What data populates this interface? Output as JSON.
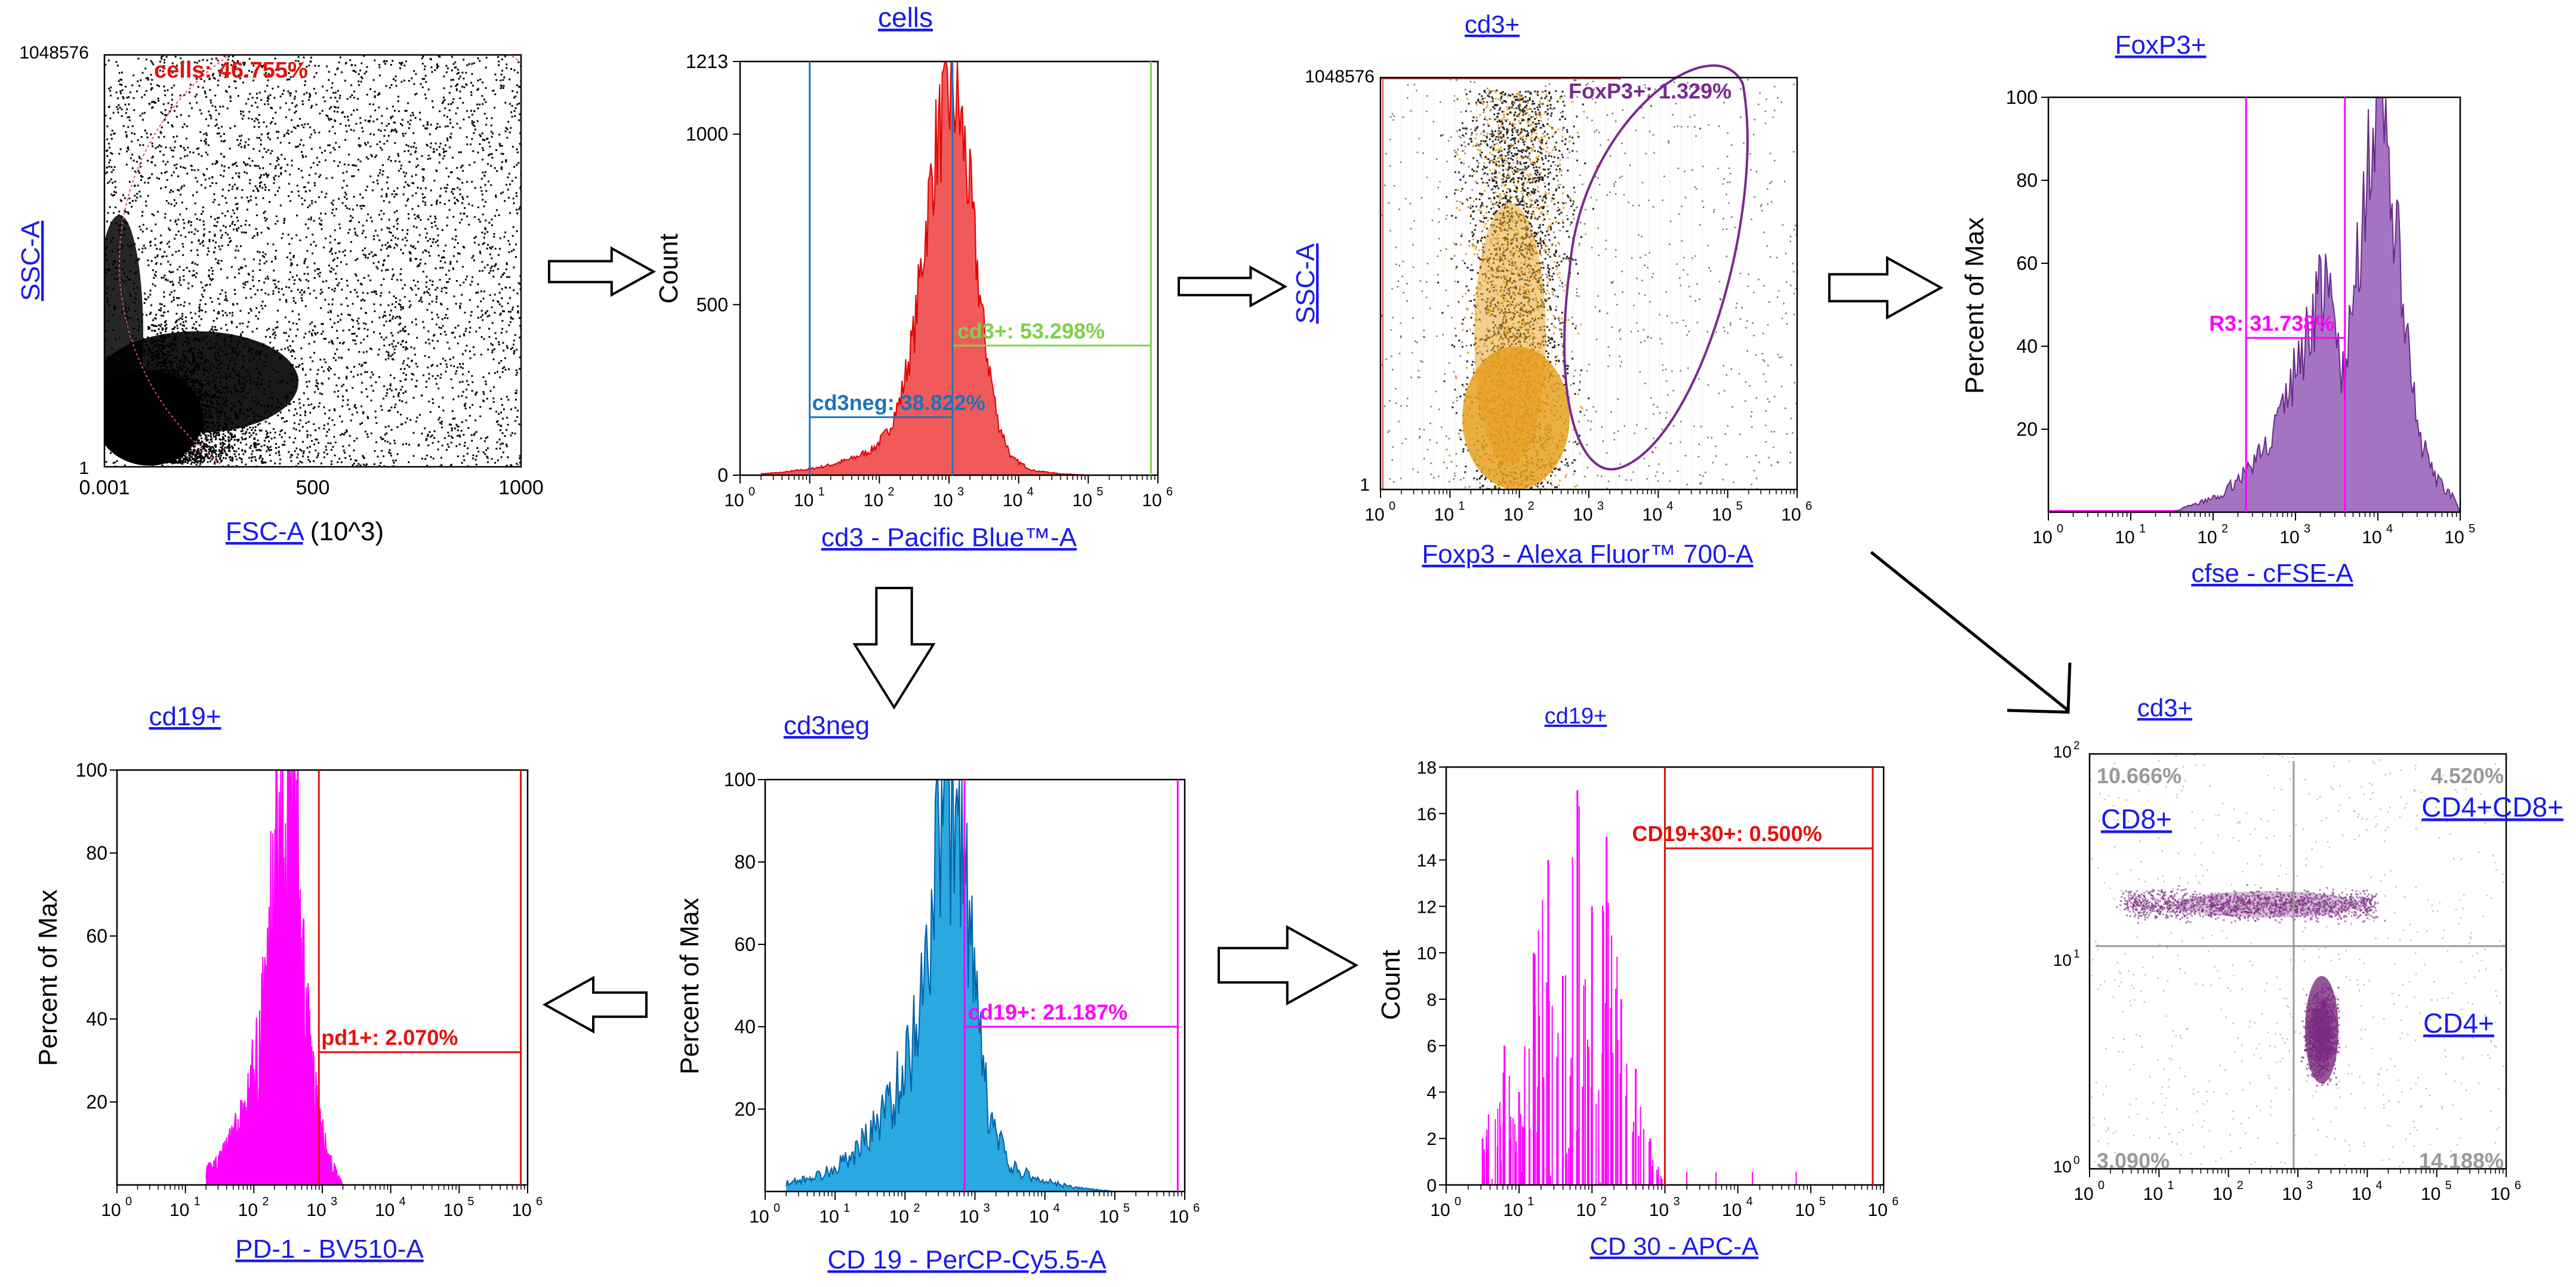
{
  "colors": {
    "link": "#1a1aee",
    "gate_red": "#e3120b",
    "gate_green": "#7ed14a",
    "gate_blue": "#1d73b8",
    "gate_purple": "#7b2a8e",
    "gate_magenta": "#ff00ff",
    "cd3_fill": "#f05a5a",
    "cd3_outline": "#e00000",
    "foxp3_dots": "#e8a020",
    "cfse_fill": "#a474c2",
    "cd19_fill": "#2aa8e0",
    "magenta": "#ff00ff",
    "quad_dots": "#7a2a80",
    "quad_line": "#999999",
    "quad_text": "#999999",
    "axis": "#000000"
  },
  "chart_data": [
    {
      "id": "p1",
      "type": "scatter",
      "title": "",
      "xlabel": "FSC-A",
      "xlabel_suffix": " (10^3)",
      "ylabel": "SSC-A",
      "x_ticks": [
        "0.001",
        "500",
        "1000"
      ],
      "y_ticks": [
        "1048576",
        "1"
      ],
      "gates": [
        {
          "name": "cells",
          "label": "cells: 46.755%",
          "percent": 46.755,
          "shape": "ellipse"
        }
      ]
    },
    {
      "id": "p2",
      "type": "area",
      "title": "cells",
      "xlabel": "cd3 - Pacific Blue™-A",
      "ylabel": "Count",
      "ylim": [
        0,
        1213
      ],
      "y_ticks": [
        "1213",
        "1000",
        "500",
        "0"
      ],
      "x_ticks": [
        "10",
        "10",
        "10",
        "10",
        "10",
        "10",
        "10"
      ],
      "x_tick_exps": [
        "0",
        "1",
        "2",
        "3",
        "4",
        "5",
        "6"
      ],
      "x": [
        0.3,
        0.6,
        1.0,
        1.3,
        1.6,
        1.9,
        2.1,
        2.3,
        2.5,
        2.65,
        2.8,
        2.95,
        3.05,
        3.15,
        3.25,
        3.35,
        3.5,
        3.7,
        3.9,
        4.2,
        4.6,
        5.0
      ],
      "values": [
        4,
        8,
        18,
        30,
        48,
        75,
        120,
        220,
        420,
        700,
        950,
        1080,
        1130,
        1060,
        920,
        720,
        420,
        160,
        50,
        14,
        4,
        0
      ],
      "gates": [
        {
          "name": "cd3+",
          "label": "cd3+: 53.298%",
          "percent": 53.298,
          "range": [
            3.05,
            5.9
          ],
          "level": 380
        },
        {
          "name": "cd3neg",
          "label": "cd3neg: 38.822%",
          "percent": 38.822,
          "range": [
            1.0,
            3.05
          ],
          "level": 170
        }
      ]
    },
    {
      "id": "p3",
      "type": "scatter",
      "title": "cd3+",
      "xlabel": "Foxp3 - Alexa Fluor™ 700-A",
      "ylabel": "SSC-A",
      "y_ticks": [
        "1048576",
        "1"
      ],
      "x_ticks": [
        "10",
        "10",
        "10",
        "10",
        "10",
        "10",
        "10"
      ],
      "x_tick_exps": [
        "0",
        "1",
        "2",
        "3",
        "4",
        "5",
        "6"
      ],
      "gates": [
        {
          "name": "FoxP3+",
          "label": "FoxP3+: 1.329%",
          "percent": 1.329,
          "shape": "ellipse"
        }
      ]
    },
    {
      "id": "p4",
      "type": "area",
      "title": "FoxP3+",
      "xlabel": "cfse - cFSE-A",
      "ylabel": "Percent of Max",
      "ylim": [
        0,
        100
      ],
      "y_ticks": [
        "100",
        "80",
        "60",
        "40",
        "20"
      ],
      "x_ticks": [
        "10",
        "10",
        "10",
        "10",
        "10",
        "10"
      ],
      "x_tick_exps": [
        "0",
        "1",
        "2",
        "3",
        "4",
        "5"
      ],
      "x": [
        0,
        1.5,
        1.8,
        2.1,
        2.3,
        2.5,
        2.7,
        2.9,
        3.1,
        3.3,
        3.45,
        3.6,
        3.75,
        3.9,
        4.05,
        4.2,
        4.35,
        4.5,
        4.7,
        4.9,
        5.0
      ],
      "values": [
        0,
        0,
        2,
        4,
        8,
        12,
        18,
        28,
        40,
        55,
        48,
        30,
        62,
        90,
        100,
        72,
        40,
        18,
        8,
        4,
        0
      ],
      "gates": [
        {
          "name": "R3",
          "label": "R3: 31.738%",
          "percent": 31.738,
          "range": [
            2.4,
            3.6
          ],
          "level": 42
        }
      ]
    },
    {
      "id": "p5",
      "type": "area",
      "title": "cd19+",
      "xlabel": "PD-1 - BV510-A",
      "ylabel": "Percent of Max",
      "ylim": [
        0,
        100
      ],
      "y_ticks": [
        "100",
        "80",
        "60",
        "40",
        "20"
      ],
      "x_ticks": [
        "10",
        "10",
        "10",
        "10",
        "10",
        "10",
        "10"
      ],
      "x_tick_exps": [
        "0",
        "1",
        "2",
        "3",
        "4",
        "5",
        "6"
      ],
      "x": [
        1.3,
        1.6,
        1.9,
        2.1,
        2.25,
        2.4,
        2.5,
        2.6,
        2.7,
        2.8,
        2.95,
        3.1,
        3.3
      ],
      "values": [
        3,
        8,
        18,
        35,
        60,
        88,
        100,
        85,
        55,
        32,
        14,
        6,
        0
      ],
      "gates": [
        {
          "name": "pd1+",
          "label": "pd1+: 2.070%",
          "percent": 2.07,
          "range": [
            2.95,
            5.9
          ],
          "level": 32
        }
      ]
    },
    {
      "id": "p6",
      "type": "area",
      "title": "cd3neg",
      "xlabel": "CD 19 - PerCP-Cy5.5-A",
      "ylabel": "Percent of Max",
      "ylim": [
        0,
        100
      ],
      "y_ticks": [
        "100",
        "80",
        "60",
        "40",
        "20"
      ],
      "x_ticks": [
        "10",
        "10",
        "10",
        "10",
        "10",
        "10",
        "10"
      ],
      "x_tick_exps": [
        "0",
        "1",
        "2",
        "3",
        "4",
        "5",
        "6"
      ],
      "x": [
        0.3,
        0.8,
        1.2,
        1.5,
        1.8,
        2.0,
        2.2,
        2.4,
        2.55,
        2.7,
        2.85,
        3.0,
        3.2,
        3.5,
        3.9,
        4.4,
        5.0
      ],
      "values": [
        2,
        4,
        8,
        14,
        22,
        30,
        45,
        70,
        95,
        100,
        80,
        45,
        18,
        6,
        3,
        1,
        0
      ],
      "gates": [
        {
          "name": "cd19+",
          "label": "cd19+: 21.187%",
          "percent": 21.187,
          "range": [
            2.85,
            5.9
          ],
          "level": 40
        }
      ]
    },
    {
      "id": "p7",
      "type": "area",
      "title": "cd19+",
      "xlabel": "CD 30 - APC-A",
      "ylabel": "Count",
      "ylim": [
        0,
        18
      ],
      "y_ticks": [
        "18",
        "16",
        "14",
        "12",
        "10",
        "8",
        "6",
        "4",
        "2",
        "0"
      ],
      "x_ticks": [
        "10",
        "10",
        "10",
        "10",
        "10",
        "10",
        "10"
      ],
      "x_tick_exps": [
        "0",
        "1",
        "2",
        "3",
        "4",
        "5",
        "6"
      ],
      "x": [
        0.5,
        0.8,
        1.0,
        1.2,
        1.4,
        1.6,
        1.8,
        2.0,
        2.2,
        2.4,
        2.6,
        2.8,
        3.0
      ],
      "values": [
        2,
        6,
        4,
        10,
        14,
        9,
        17,
        12,
        15,
        8,
        5,
        2,
        0
      ],
      "gates": [
        {
          "name": "CD19+30+",
          "label": "CD19+30+: 0.500%",
          "percent": 0.5,
          "range": [
            3.0,
            5.85
          ],
          "level": 14.5
        }
      ]
    },
    {
      "id": "p8",
      "type": "scatter",
      "title": "cd3+",
      "xlabel": "",
      "ylabel": "",
      "x_ticks": [
        "10",
        "10",
        "10",
        "10",
        "10",
        "10",
        "10"
      ],
      "x_tick_exps": [
        "0",
        "1",
        "2",
        "3",
        "4",
        "5",
        "6"
      ],
      "y_ticks": [
        "10",
        "10",
        "10"
      ],
      "y_tick_exps": [
        "2",
        "1",
        "0"
      ],
      "quadrants": [
        {
          "pos": "top-left",
          "percent_label": "10.666%",
          "name": "CD8+"
        },
        {
          "pos": "top-right",
          "percent_label": "4.520%",
          "name": "CD4+CD8+"
        },
        {
          "pos": "bottom-right",
          "percent_label": "14.188%",
          "name": "CD4+"
        },
        {
          "pos": "bottom-left",
          "percent_label": "3.090%",
          "name": ""
        }
      ]
    }
  ]
}
